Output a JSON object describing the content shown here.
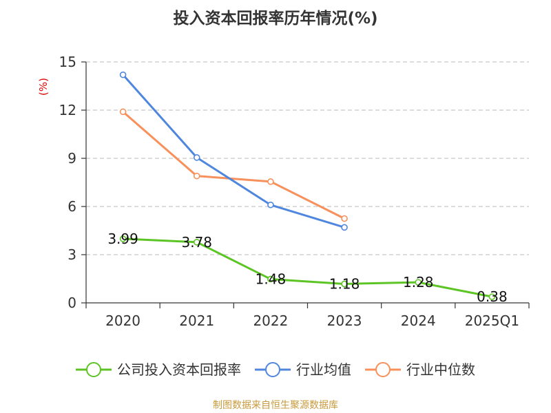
{
  "chart_data": {
    "type": "line",
    "title": "投入资本回报率历年情况(%)",
    "ylabel": "(%)",
    "xlabel": "",
    "categories": [
      "2020",
      "2021",
      "2022",
      "2023",
      "2024",
      "2025Q1"
    ],
    "ylim": [
      0,
      15
    ],
    "yticks": [
      0,
      3,
      6,
      9,
      12,
      15
    ],
    "grid": true,
    "legend_position": "bottom",
    "series": [
      {
        "name": "公司投入资本回报率",
        "color": "#5cc424",
        "values": [
          3.99,
          3.78,
          1.48,
          1.18,
          1.28,
          0.38
        ],
        "labels": [
          "3.99",
          "3.78",
          "1.48",
          "1.18",
          "1.28",
          "0.38"
        ],
        "show_labels": true
      },
      {
        "name": "行业均值",
        "color": "#4f86de",
        "values": [
          14.2,
          9.05,
          6.1,
          4.7,
          null,
          null
        ],
        "show_labels": false
      },
      {
        "name": "行业中位数",
        "color": "#f7905a",
        "values": [
          11.9,
          7.9,
          7.55,
          5.25,
          null,
          null
        ],
        "show_labels": false
      }
    ],
    "source": "制图数据来自恒生聚源数据库"
  }
}
